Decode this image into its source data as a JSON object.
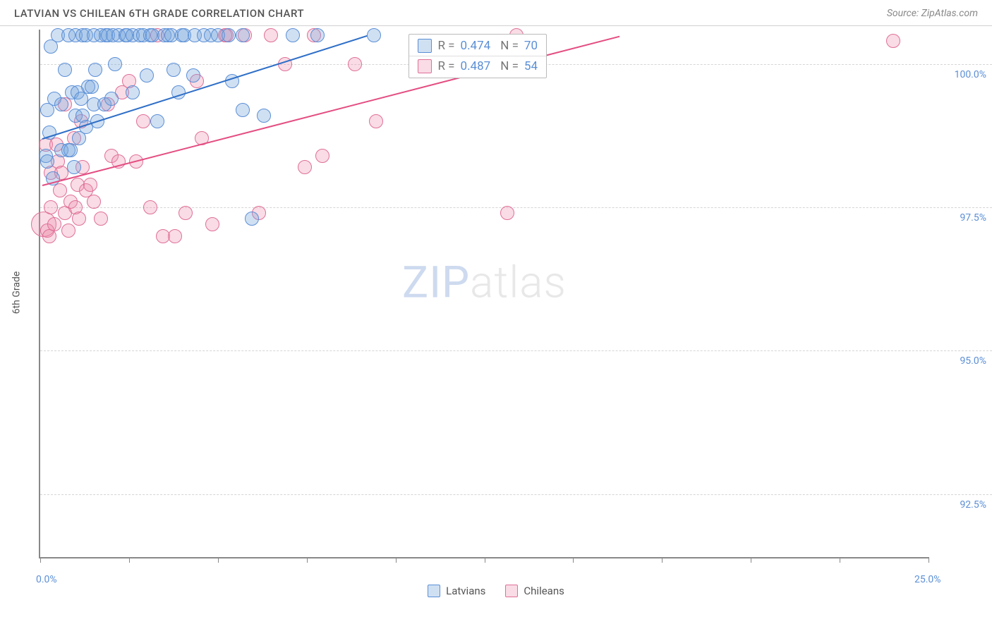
{
  "header": {
    "title": "LATVIAN VS CHILEAN 6TH GRADE CORRELATION CHART",
    "source": "Source: ZipAtlas.com"
  },
  "axes": {
    "y_label": "6th Grade",
    "x_min": 0.0,
    "x_max": 25.0,
    "y_min": 91.4,
    "y_max": 100.6,
    "y_gridlines": [
      92.5,
      95.0,
      97.5,
      100.0
    ],
    "y_tick_labels": [
      "92.5%",
      "95.0%",
      "97.5%",
      "100.0%"
    ],
    "x_ticks": [
      0,
      2.5,
      5,
      7.5,
      10,
      12.5,
      15,
      17.5,
      20,
      22.5,
      25
    ],
    "x_tick_labels": {
      "0": "0.0%",
      "25": "25.0%"
    }
  },
  "colors": {
    "latvian_fill": "rgba(120,165,220,0.35)",
    "latvian_stroke": "#5b8fd6",
    "chilean_fill": "rgba(235,140,170,0.30)",
    "chilean_stroke": "#e06f98",
    "latvian_line": "#2e6fc7",
    "chilean_line": "#e44d82",
    "grid": "#d5d5d5",
    "axis": "#888888",
    "tick_text": "#5b8fd6"
  },
  "point_radius": 10,
  "series": {
    "latvians": {
      "label": "Latvians",
      "R": "0.474",
      "N": "70",
      "trend": {
        "x1": 0.05,
        "y1": 98.7,
        "x2": 9.2,
        "y2": 100.5
      },
      "points": [
        [
          0.15,
          98.4
        ],
        [
          0.2,
          98.3
        ],
        [
          0.2,
          99.2
        ],
        [
          0.4,
          99.4
        ],
        [
          0.3,
          100.3
        ],
        [
          0.5,
          100.5
        ],
        [
          0.25,
          98.8
        ],
        [
          0.35,
          98.0
        ],
        [
          0.6,
          98.5
        ],
        [
          0.6,
          99.3
        ],
        [
          0.7,
          99.9
        ],
        [
          0.8,
          98.5
        ],
        [
          0.85,
          98.5
        ],
        [
          0.8,
          100.5
        ],
        [
          0.9,
          99.5
        ],
        [
          0.95,
          98.2
        ],
        [
          1.0,
          99.1
        ],
        [
          1.0,
          100.5
        ],
        [
          1.05,
          99.5
        ],
        [
          1.1,
          98.7
        ],
        [
          1.15,
          99.4
        ],
        [
          1.2,
          99.1
        ],
        [
          1.2,
          100.5
        ],
        [
          1.3,
          98.9
        ],
        [
          1.3,
          100.5
        ],
        [
          1.35,
          99.6
        ],
        [
          1.45,
          99.6
        ],
        [
          1.5,
          99.3
        ],
        [
          1.5,
          100.5
        ],
        [
          1.55,
          99.9
        ],
        [
          1.6,
          99.0
        ],
        [
          1.7,
          100.5
        ],
        [
          1.8,
          99.3
        ],
        [
          1.85,
          100.5
        ],
        [
          1.9,
          100.5
        ],
        [
          2.0,
          99.4
        ],
        [
          2.05,
          100.5
        ],
        [
          2.1,
          100.0
        ],
        [
          2.2,
          100.5
        ],
        [
          2.4,
          100.5
        ],
        [
          2.45,
          100.5
        ],
        [
          2.6,
          100.5
        ],
        [
          2.6,
          99.5
        ],
        [
          2.8,
          100.5
        ],
        [
          2.9,
          100.5
        ],
        [
          3.0,
          99.8
        ],
        [
          3.1,
          100.5
        ],
        [
          3.15,
          100.5
        ],
        [
          3.3,
          99.0
        ],
        [
          3.5,
          100.5
        ],
        [
          3.6,
          100.5
        ],
        [
          3.7,
          100.5
        ],
        [
          3.75,
          99.9
        ],
        [
          3.9,
          99.5
        ],
        [
          4.0,
          100.5
        ],
        [
          4.05,
          100.5
        ],
        [
          4.3,
          99.8
        ],
        [
          4.35,
          100.5
        ],
        [
          4.6,
          100.5
        ],
        [
          4.8,
          100.5
        ],
        [
          5.0,
          100.5
        ],
        [
          5.3,
          100.5
        ],
        [
          5.4,
          99.7
        ],
        [
          5.7,
          100.5
        ],
        [
          5.7,
          99.2
        ],
        [
          5.95,
          97.3
        ],
        [
          6.3,
          99.1
        ],
        [
          7.1,
          100.5
        ],
        [
          7.8,
          100.5
        ],
        [
          9.4,
          100.5
        ]
      ]
    },
    "chileans": {
      "label": "Chileans",
      "R": "0.487",
      "N": "54",
      "trend": {
        "x1": 0.05,
        "y1": 97.9,
        "x2": 16.3,
        "y2": 100.5
      },
      "points": [
        [
          0.1,
          97.2,
          18
        ],
        [
          0.2,
          97.1
        ],
        [
          0.25,
          97.0
        ],
        [
          0.15,
          98.6
        ],
        [
          0.3,
          98.1
        ],
        [
          0.3,
          97.5
        ],
        [
          0.4,
          97.2
        ],
        [
          0.45,
          98.6
        ],
        [
          0.5,
          98.3
        ],
        [
          0.55,
          97.8
        ],
        [
          0.6,
          98.1
        ],
        [
          0.7,
          97.4
        ],
        [
          0.7,
          99.3
        ],
        [
          0.8,
          97.1
        ],
        [
          0.85,
          97.6
        ],
        [
          0.95,
          98.7
        ],
        [
          1.0,
          97.5
        ],
        [
          1.05,
          97.9
        ],
        [
          1.1,
          97.3
        ],
        [
          1.15,
          99.0
        ],
        [
          1.2,
          98.2
        ],
        [
          1.3,
          97.8
        ],
        [
          1.4,
          97.9
        ],
        [
          1.5,
          97.6
        ],
        [
          1.7,
          97.3
        ],
        [
          1.9,
          99.3
        ],
        [
          2.0,
          98.4
        ],
        [
          2.2,
          98.3
        ],
        [
          2.3,
          99.5
        ],
        [
          2.5,
          99.7
        ],
        [
          2.7,
          98.3
        ],
        [
          2.9,
          99.0
        ],
        [
          3.1,
          97.5
        ],
        [
          3.3,
          100.5
        ],
        [
          3.45,
          97.0
        ],
        [
          3.8,
          97.0
        ],
        [
          4.1,
          97.4
        ],
        [
          4.4,
          99.7
        ],
        [
          4.55,
          98.7
        ],
        [
          4.85,
          97.2
        ],
        [
          5.2,
          100.5
        ],
        [
          5.25,
          100.5
        ],
        [
          5.75,
          100.5
        ],
        [
          6.15,
          97.4
        ],
        [
          6.5,
          100.5
        ],
        [
          6.9,
          100.0
        ],
        [
          7.45,
          98.2
        ],
        [
          7.7,
          100.5
        ],
        [
          7.95,
          98.4
        ],
        [
          8.85,
          100.0
        ],
        [
          9.45,
          99.0
        ],
        [
          13.15,
          97.4
        ],
        [
          13.4,
          100.5
        ],
        [
          24.0,
          100.4
        ]
      ]
    }
  },
  "legend": [
    "Latvians",
    "Chileans"
  ],
  "watermark": {
    "part1": "ZIP",
    "part2": "atlas"
  }
}
